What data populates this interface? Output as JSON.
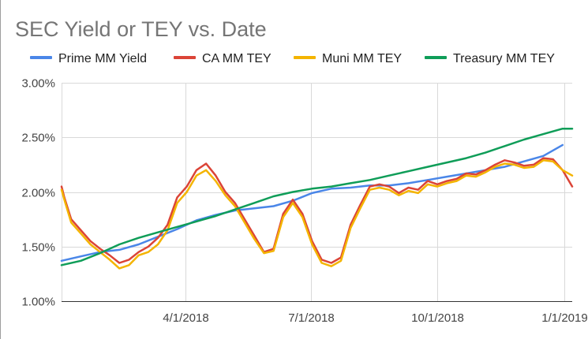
{
  "chart_data": {
    "type": "line",
    "title": "SEC Yield or TEY vs. Date",
    "xlabel": "",
    "ylabel": "",
    "x_type": "date",
    "xlim": [
      "2018-01-01",
      "2019-01-07"
    ],
    "ylim": [
      1.0,
      3.0
    ],
    "y_ticks": [
      "1.00%",
      "1.50%",
      "2.00%",
      "2.50%",
      "3.00%"
    ],
    "y_tick_values": [
      1.0,
      1.5,
      2.0,
      2.5,
      3.0
    ],
    "x_ticks": [
      "4/1/2018",
      "7/1/2018",
      "10/1/2018",
      "1/1/2019"
    ],
    "x_tick_values": [
      "2018-04-01",
      "2018-07-01",
      "2018-10-01",
      "2019-01-01"
    ],
    "grid": true,
    "legend_position": "top",
    "series": [
      {
        "name": "Prime MM Yield",
        "color": "#4a86e8",
        "x": [
          "2018-01-01",
          "2018-01-15",
          "2018-01-29",
          "2018-02-12",
          "2018-02-26",
          "2018-03-12",
          "2018-03-26",
          "2018-04-09",
          "2018-04-23",
          "2018-05-07",
          "2018-05-21",
          "2018-06-04",
          "2018-06-18",
          "2018-07-02",
          "2018-07-16",
          "2018-07-30",
          "2018-08-13",
          "2018-08-27",
          "2018-09-10",
          "2018-09-24",
          "2018-10-08",
          "2018-10-22",
          "2018-11-05",
          "2018-11-19",
          "2018-12-03",
          "2018-12-17",
          "2018-12-31"
        ],
        "y": [
          1.37,
          1.41,
          1.45,
          1.47,
          1.52,
          1.59,
          1.66,
          1.74,
          1.79,
          1.83,
          1.85,
          1.87,
          1.92,
          1.99,
          2.03,
          2.04,
          2.06,
          2.06,
          2.08,
          2.11,
          2.14,
          2.17,
          2.2,
          2.23,
          2.28,
          2.33,
          2.43
        ]
      },
      {
        "name": "CA MM TEY",
        "color": "#db4437",
        "x": [
          "2018-01-01",
          "2018-01-03",
          "2018-01-08",
          "2018-01-15",
          "2018-01-22",
          "2018-01-29",
          "2018-02-05",
          "2018-02-12",
          "2018-02-19",
          "2018-02-26",
          "2018-03-05",
          "2018-03-12",
          "2018-03-19",
          "2018-03-26",
          "2018-04-02",
          "2018-04-09",
          "2018-04-16",
          "2018-04-23",
          "2018-04-30",
          "2018-05-07",
          "2018-05-14",
          "2018-05-21",
          "2018-05-28",
          "2018-06-04",
          "2018-06-11",
          "2018-06-18",
          "2018-06-25",
          "2018-07-02",
          "2018-07-09",
          "2018-07-16",
          "2018-07-23",
          "2018-07-30",
          "2018-08-06",
          "2018-08-13",
          "2018-08-20",
          "2018-08-27",
          "2018-09-03",
          "2018-09-10",
          "2018-09-17",
          "2018-09-24",
          "2018-10-01",
          "2018-10-08",
          "2018-10-15",
          "2018-10-22",
          "2018-10-29",
          "2018-11-05",
          "2018-11-12",
          "2018-11-19",
          "2018-11-26",
          "2018-12-03",
          "2018-12-10",
          "2018-12-17",
          "2018-12-24",
          "2018-12-31",
          "2019-01-07"
        ],
        "y": [
          2.05,
          1.95,
          1.75,
          1.65,
          1.55,
          1.48,
          1.42,
          1.35,
          1.38,
          1.45,
          1.5,
          1.58,
          1.7,
          1.95,
          2.05,
          2.2,
          2.26,
          2.15,
          2.0,
          1.9,
          1.75,
          1.6,
          1.45,
          1.48,
          1.8,
          1.93,
          1.8,
          1.55,
          1.38,
          1.35,
          1.4,
          1.7,
          1.88,
          2.05,
          2.07,
          2.05,
          1.99,
          2.04,
          2.02,
          2.1,
          2.07,
          2.1,
          2.12,
          2.17,
          2.16,
          2.2,
          2.25,
          2.29,
          2.27,
          2.24,
          2.25,
          2.31,
          2.3,
          2.2,
          2.05
        ]
      },
      {
        "name": "Muni MM TEY",
        "color": "#f4b400",
        "x": [
          "2018-01-01",
          "2018-01-03",
          "2018-01-08",
          "2018-01-15",
          "2018-01-22",
          "2018-01-29",
          "2018-02-05",
          "2018-02-12",
          "2018-02-19",
          "2018-02-26",
          "2018-03-05",
          "2018-03-12",
          "2018-03-19",
          "2018-03-26",
          "2018-04-02",
          "2018-04-09",
          "2018-04-16",
          "2018-04-23",
          "2018-04-30",
          "2018-05-07",
          "2018-05-14",
          "2018-05-21",
          "2018-05-28",
          "2018-06-04",
          "2018-06-11",
          "2018-06-18",
          "2018-06-25",
          "2018-07-02",
          "2018-07-09",
          "2018-07-16",
          "2018-07-23",
          "2018-07-30",
          "2018-08-06",
          "2018-08-13",
          "2018-08-20",
          "2018-08-27",
          "2018-09-03",
          "2018-09-10",
          "2018-09-17",
          "2018-09-24",
          "2018-10-01",
          "2018-10-08",
          "2018-10-15",
          "2018-10-22",
          "2018-10-29",
          "2018-11-05",
          "2018-11-12",
          "2018-11-19",
          "2018-11-26",
          "2018-12-03",
          "2018-12-10",
          "2018-12-17",
          "2018-12-24",
          "2018-12-31",
          "2019-01-07"
        ],
        "y": [
          2.02,
          1.93,
          1.72,
          1.62,
          1.52,
          1.45,
          1.38,
          1.3,
          1.33,
          1.42,
          1.45,
          1.52,
          1.65,
          1.9,
          2.0,
          2.15,
          2.2,
          2.1,
          1.97,
          1.87,
          1.72,
          1.57,
          1.44,
          1.46,
          1.77,
          1.9,
          1.77,
          1.52,
          1.35,
          1.32,
          1.37,
          1.67,
          1.85,
          2.02,
          2.04,
          2.02,
          1.97,
          2.01,
          1.99,
          2.07,
          2.05,
          2.08,
          2.1,
          2.15,
          2.14,
          2.18,
          2.23,
          2.26,
          2.25,
          2.22,
          2.23,
          2.29,
          2.28,
          2.2,
          2.15
        ]
      },
      {
        "name": "Treasury MM TEY",
        "color": "#0f9d58",
        "x": [
          "2018-01-01",
          "2018-01-15",
          "2018-01-29",
          "2018-02-12",
          "2018-02-26",
          "2018-03-12",
          "2018-03-26",
          "2018-04-09",
          "2018-04-23",
          "2018-05-07",
          "2018-05-21",
          "2018-06-04",
          "2018-06-18",
          "2018-07-02",
          "2018-07-16",
          "2018-07-30",
          "2018-08-13",
          "2018-08-27",
          "2018-09-10",
          "2018-09-24",
          "2018-10-08",
          "2018-10-22",
          "2018-11-05",
          "2018-11-19",
          "2018-12-03",
          "2018-12-17",
          "2018-12-31",
          "2019-01-07"
        ],
        "y": [
          1.33,
          1.37,
          1.44,
          1.52,
          1.58,
          1.63,
          1.68,
          1.73,
          1.78,
          1.84,
          1.9,
          1.96,
          2.0,
          2.03,
          2.05,
          2.08,
          2.11,
          2.15,
          2.19,
          2.23,
          2.27,
          2.31,
          2.36,
          2.42,
          2.48,
          2.53,
          2.58,
          2.58
        ]
      }
    ]
  }
}
